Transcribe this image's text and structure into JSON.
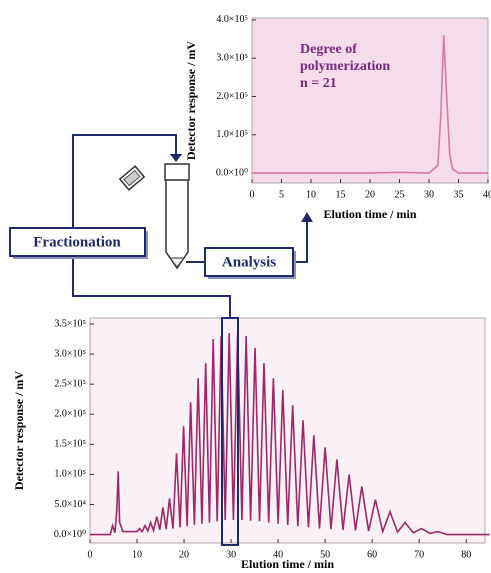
{
  "chart_data": [
    {
      "type": "line",
      "annotation": [
        "Degree of",
        "polymerization",
        "n = 21"
      ],
      "x_label": "Elution time / min",
      "y_label": "Detector response / mV",
      "color": "#d879aa",
      "background": "#f6dcea",
      "xlim": [
        0,
        40
      ],
      "ylim": [
        -26000,
        405000
      ],
      "xticks": [
        0,
        5,
        10,
        15,
        20,
        25,
        30,
        35,
        40
      ],
      "yticks": [
        {
          "value": 0,
          "label": "0.0×10⁰"
        },
        {
          "value": 100000,
          "label": "1.0×10⁵"
        },
        {
          "value": 200000,
          "label": "2.0×10⁵"
        },
        {
          "value": 300000,
          "label": "3.0×10⁵"
        },
        {
          "value": 400000,
          "label": "4.0×10⁵"
        }
      ],
      "x": [
        0,
        20,
        25,
        30,
        31.5,
        32,
        32.5,
        33,
        33.5,
        34,
        35,
        40
      ],
      "values": [
        0,
        0,
        2000,
        0,
        20000,
        150000,
        360000,
        200000,
        50000,
        10000,
        0,
        0
      ]
    },
    {
      "type": "line",
      "x_label": "Elution time / min",
      "y_label": "Detector response / mV",
      "color": "#9c2a6a",
      "background": "#fbf0f5",
      "xlim": [
        0,
        84
      ],
      "ylim": [
        -14000,
        360000
      ],
      "xticks": [
        0,
        10,
        20,
        30,
        40,
        50,
        60,
        70,
        80
      ],
      "yticks": [
        {
          "value": 0,
          "label": "0.0×10⁰"
        },
        {
          "value": 50000,
          "label": "5.0×10⁴"
        },
        {
          "value": 100000,
          "label": "1.0×10⁵"
        },
        {
          "value": 150000,
          "label": "1.5×10⁵"
        },
        {
          "value": 200000,
          "label": "2.0×10⁵"
        },
        {
          "value": 250000,
          "label": "2.5×10⁵"
        },
        {
          "value": 300000,
          "label": "3.0×10⁵"
        },
        {
          "value": 350000,
          "label": "3.5×10⁵"
        }
      ],
      "x": [
        0,
        4.3,
        4.8,
        5.3,
        5.7,
        6.0,
        6.3,
        7.0,
        10.0,
        10.5,
        11.1,
        11.7,
        12.3,
        12.9,
        13.5,
        14.2,
        14.85,
        15.5,
        16.2,
        16.9,
        17.65,
        18.4,
        19.15,
        19.9,
        20.65,
        21.4,
        22.2,
        23.0,
        23.8,
        24.6,
        25.4,
        26.2,
        27.05,
        27.9,
        28.75,
        29.6,
        30.5,
        31.4,
        32.3,
        33.2,
        34.15,
        35.1,
        36.05,
        37.0,
        38.0,
        39.0,
        40.0,
        41.0,
        42.05,
        43.1,
        44.2,
        45.3,
        46.45,
        47.6,
        48.8,
        50.0,
        51.25,
        52.5,
        53.8,
        55.1,
        56.45,
        57.8,
        59.25,
        60.7,
        62.25,
        63.8,
        65.4,
        67.0,
        68.75,
        70.5,
        72.25,
        74.0,
        76,
        85
      ],
      "values": [
        0,
        0,
        15000,
        3000,
        40000,
        105000,
        20000,
        5000,
        5000,
        10000,
        5000,
        15000,
        6000,
        20000,
        7000,
        30000,
        8000,
        45000,
        9000,
        60000,
        10000,
        135000,
        12000,
        180000,
        14000,
        220000,
        16000,
        260000,
        18000,
        285000,
        20000,
        325000,
        22000,
        330000,
        24000,
        335000,
        24000,
        335000,
        24000,
        330000,
        23000,
        310000,
        22000,
        285000,
        20000,
        260000,
        18000,
        240000,
        16000,
        215000,
        14000,
        190000,
        12000,
        165000,
        10000,
        145000,
        9000,
        125000,
        8000,
        100000,
        7000,
        80000,
        6000,
        58000,
        5000,
        38000,
        4000,
        20000,
        3000,
        10000,
        2000,
        5000,
        0,
        0
      ]
    }
  ],
  "labels": {
    "fractionation": "Fractionation",
    "analysis": "Analysis"
  }
}
